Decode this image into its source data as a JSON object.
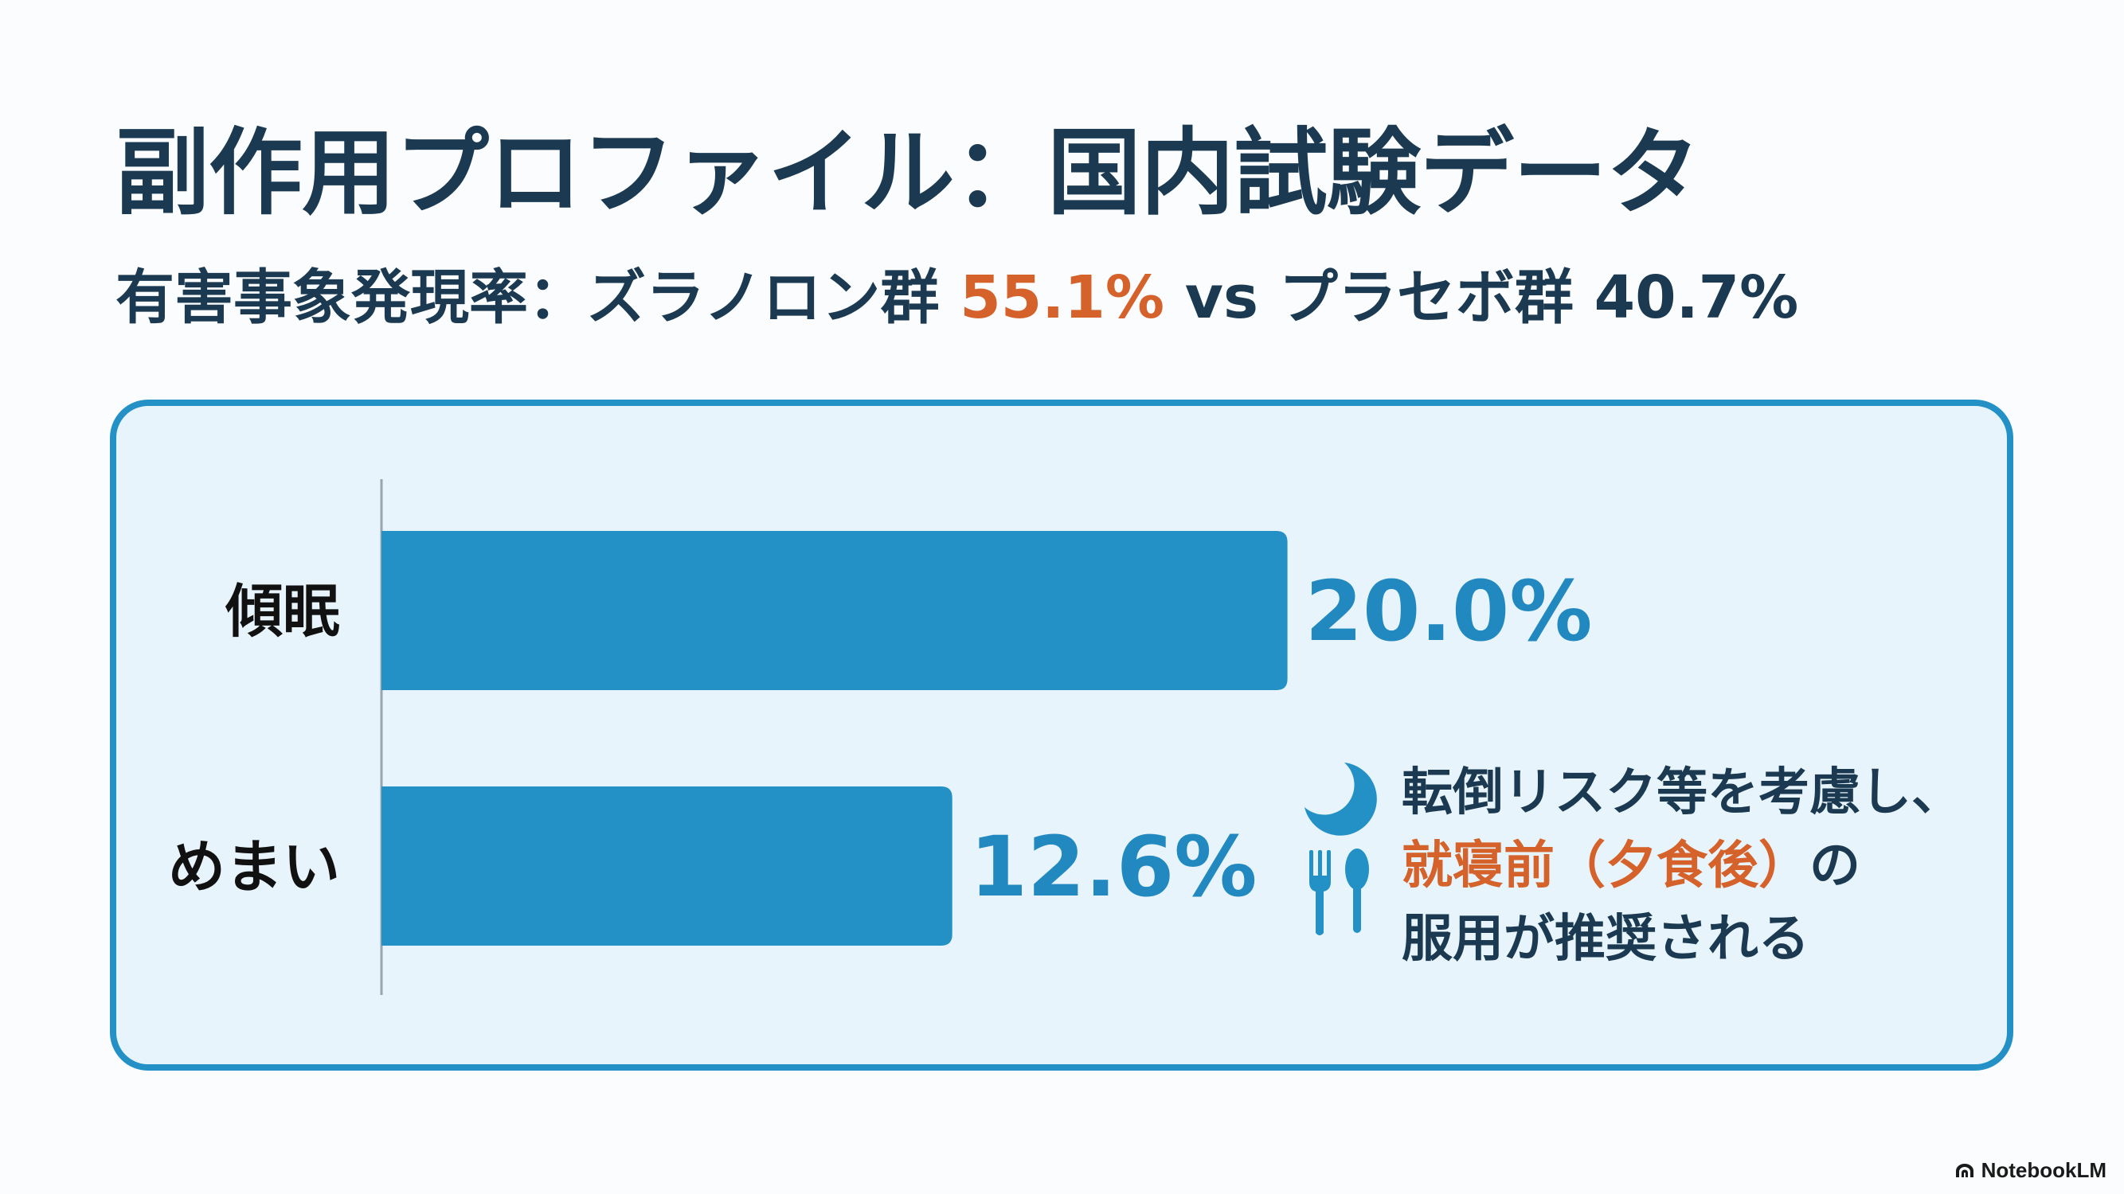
{
  "title": "副作用プロファイル：国内試験データ",
  "subtitle": {
    "prefix": "有害事象発現率：ズラノロン群 ",
    "drug_rate": "55.1%",
    "middle": " vs プラセボ群 ",
    "placebo_rate": "40.7%"
  },
  "chart_data": {
    "type": "bar",
    "orientation": "horizontal",
    "categories": [
      "傾眠",
      "めまい"
    ],
    "values": [
      20.0,
      12.6
    ],
    "value_labels": [
      "20.0%",
      "12.6%"
    ],
    "xlim": [
      0,
      25
    ],
    "grid": false,
    "bar_color": "#2391c6"
  },
  "note": {
    "line1": "転倒リスク等を考慮し、",
    "line2_highlight": "就寝前（夕食後）",
    "line2_rest": "の",
    "line3": "服用が推奨される",
    "icons": [
      "moon-icon",
      "utensils-icon"
    ]
  },
  "brand": "NotebookLM",
  "colors": {
    "accent": "#2391c6",
    "highlight": "#d4622a",
    "heading": "#1b3a52",
    "panel_bg": "#e7f4fb"
  }
}
